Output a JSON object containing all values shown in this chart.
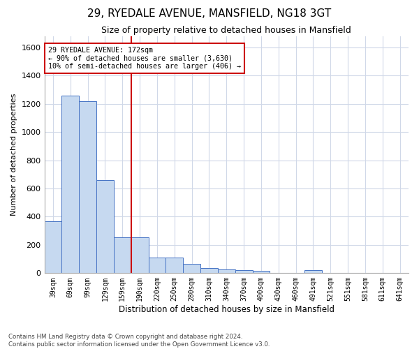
{
  "title": "29, RYEDALE AVENUE, MANSFIELD, NG18 3GT",
  "subtitle": "Size of property relative to detached houses in Mansfield",
  "xlabel": "Distribution of detached houses by size in Mansfield",
  "ylabel": "Number of detached properties",
  "categories": [
    "39sqm",
    "69sqm",
    "99sqm",
    "129sqm",
    "159sqm",
    "190sqm",
    "220sqm",
    "250sqm",
    "280sqm",
    "310sqm",
    "340sqm",
    "370sqm",
    "400sqm",
    "430sqm",
    "460sqm",
    "491sqm",
    "521sqm",
    "551sqm",
    "581sqm",
    "611sqm",
    "641sqm"
  ],
  "bar_heights": [
    370,
    1260,
    1220,
    660,
    255,
    255,
    110,
    110,
    65,
    35,
    25,
    20,
    15,
    0,
    0,
    20,
    0,
    0,
    0,
    0,
    0
  ],
  "bar_color": "#c6d9f0",
  "bar_edge_color": "#4472c4",
  "annotation_line1": "29 RYEDALE AVENUE: 172sqm",
  "annotation_line2": "← 90% of detached houses are smaller (3,630)",
  "annotation_line3": "10% of semi-detached houses are larger (406) →",
  "ylim": [
    0,
    1680
  ],
  "yticks": [
    0,
    200,
    400,
    600,
    800,
    1000,
    1200,
    1400,
    1600
  ],
  "footnote1": "Contains HM Land Registry data © Crown copyright and database right 2024.",
  "footnote2": "Contains public sector information licensed under the Open Government Licence v3.0.",
  "bg_color": "#ffffff",
  "grid_color": "#d0d8e8",
  "annotation_box_color": "#cc0000",
  "vline_color": "#cc0000",
  "title_fontsize": 11,
  "subtitle_fontsize": 9
}
